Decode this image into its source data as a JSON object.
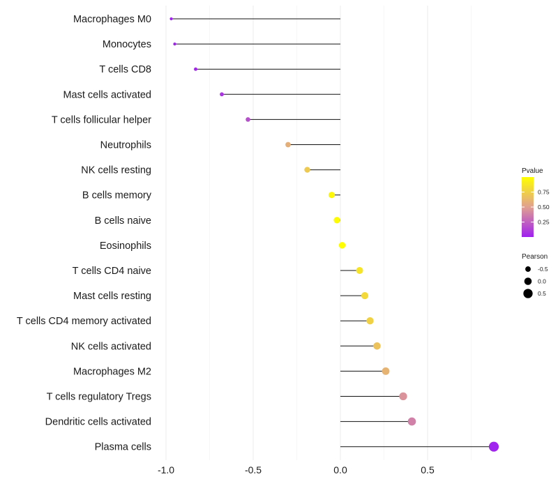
{
  "chart_data": {
    "type": "lollipop",
    "title": "",
    "xlabel": "",
    "ylabel": "",
    "xlim": [
      -1.0,
      0.9
    ],
    "x_ticks": [
      {
        "value": -1.0,
        "label": "-1.0"
      },
      {
        "value": -0.5,
        "label": "-0.5"
      },
      {
        "value": 0.0,
        "label": "0.0"
      },
      {
        "value": 0.5,
        "label": "0.5"
      }
    ],
    "grid": true,
    "points": [
      {
        "category": "Macrophages M0",
        "pearson": -0.97,
        "pvalue": 0.002
      },
      {
        "category": "Monocytes",
        "pearson": -0.95,
        "pvalue": 0.004
      },
      {
        "category": "T cells CD8",
        "pearson": -0.83,
        "pvalue": 0.02
      },
      {
        "category": "Mast cells activated",
        "pearson": -0.68,
        "pvalue": 0.08
      },
      {
        "category": "T cells follicular helper",
        "pearson": -0.53,
        "pvalue": 0.18
      },
      {
        "category": "Neutrophils",
        "pearson": -0.3,
        "pvalue": 0.58
      },
      {
        "category": "NK cells resting",
        "pearson": -0.19,
        "pvalue": 0.72
      },
      {
        "category": "B cells memory",
        "pearson": -0.05,
        "pvalue": 0.96
      },
      {
        "category": "B cells naive",
        "pearson": -0.02,
        "pvalue": 0.98
      },
      {
        "category": "Eosinophils",
        "pearson": 0.01,
        "pvalue": 0.99
      },
      {
        "category": "T cells CD4 naive",
        "pearson": 0.11,
        "pvalue": 0.86
      },
      {
        "category": "Mast cells resting",
        "pearson": 0.14,
        "pvalue": 0.8
      },
      {
        "category": "T cells CD4 memory activated",
        "pearson": 0.17,
        "pvalue": 0.76
      },
      {
        "category": "NK cells activated",
        "pearson": 0.21,
        "pvalue": 0.68
      },
      {
        "category": "Macrophages M2",
        "pearson": 0.26,
        "pvalue": 0.6
      },
      {
        "category": "T cells regulatory  Tregs",
        "pearson": 0.36,
        "pvalue": 0.45
      },
      {
        "category": "Dendritic cells activated",
        "pearson": 0.41,
        "pvalue": 0.38
      },
      {
        "category": "Plasma cells",
        "pearson": 0.88,
        "pvalue": 0.01
      }
    ],
    "legend_color": {
      "title": "Pvalue",
      "ticks": [
        {
          "value": 0.75,
          "label": "0.75"
        },
        {
          "value": 0.5,
          "label": "0.50"
        },
        {
          "value": 0.25,
          "label": "0.25"
        }
      ],
      "range": [
        0.0,
        1.0
      ],
      "low_color": "#a020f0",
      "mid_color": "#e0a090",
      "high_color": "#ffff00",
      "position": "right"
    },
    "legend_size": {
      "title": "Pearson",
      "entries": [
        {
          "value": -0.5,
          "label": "-0.5"
        },
        {
          "value": 0.0,
          "label": "0.0"
        },
        {
          "value": 0.5,
          "label": "0.5"
        }
      ],
      "position": "right"
    }
  }
}
